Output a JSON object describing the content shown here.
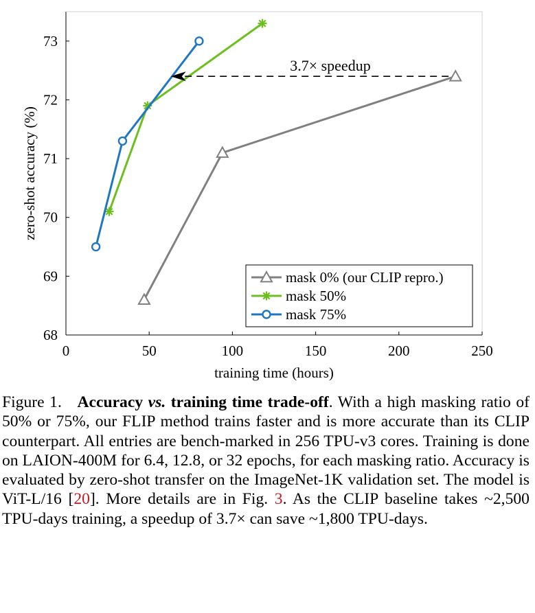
{
  "chart_data": {
    "type": "line",
    "xlabel": "training time (hours)",
    "ylabel": "zero-shot accuracy (%)",
    "xlim": [
      0,
      250
    ],
    "ylim": [
      68,
      73.5
    ],
    "xticks": [
      "0",
      "50",
      "100",
      "150",
      "200",
      "250"
    ],
    "yticks": [
      "68",
      "69",
      "70",
      "71",
      "72",
      "73"
    ],
    "grid": false,
    "legend_position": "bottom-right",
    "series": [
      {
        "name": "mask 0% (our CLIP repro.)",
        "marker": "triangle",
        "color": "#808080",
        "x": [
          47,
          94,
          234
        ],
        "y": [
          68.6,
          71.1,
          72.4
        ]
      },
      {
        "name": "mask 50%",
        "marker": "star",
        "color": "#6cbf1f",
        "x": [
          26,
          49,
          118
        ],
        "y": [
          70.1,
          71.9,
          73.3
        ]
      },
      {
        "name": "mask 75%",
        "marker": "circle",
        "color": "#1f77c4",
        "x": [
          18,
          34,
          80
        ],
        "y": [
          69.5,
          71.3,
          73.0
        ]
      }
    ],
    "annotation": {
      "text": "3.7× speedup",
      "from": {
        "x": 234,
        "y": 72.4
      },
      "to": {
        "x": 63,
        "y": 72.4
      }
    }
  },
  "caption": {
    "label": "Figure 1.",
    "title_a": "Accuracy",
    "title_vs": "vs.",
    "title_b": "training time trade-off",
    "text_1": ". With a high masking ratio of 50% or 75%, our FLIP method trains faster and is more accurate than its CLIP counterpart. All entries are bench-marked in 256 TPU-v3 cores. Training is done on LAION-400M for 6.4, 12.8, or 32 epochs, for each masking ratio. Accuracy is evaluated by zero-shot transfer on the ImageNet-1K validation set. The model is ViT-L/16 [",
    "ref_1": "20",
    "text_2": "]. More details are in Fig. ",
    "ref_2": "3",
    "text_3": ". As the CLIP baseline takes ~2,500 TPU-days training, a speedup of 3.7× can save ~1,800 TPU-days."
  }
}
